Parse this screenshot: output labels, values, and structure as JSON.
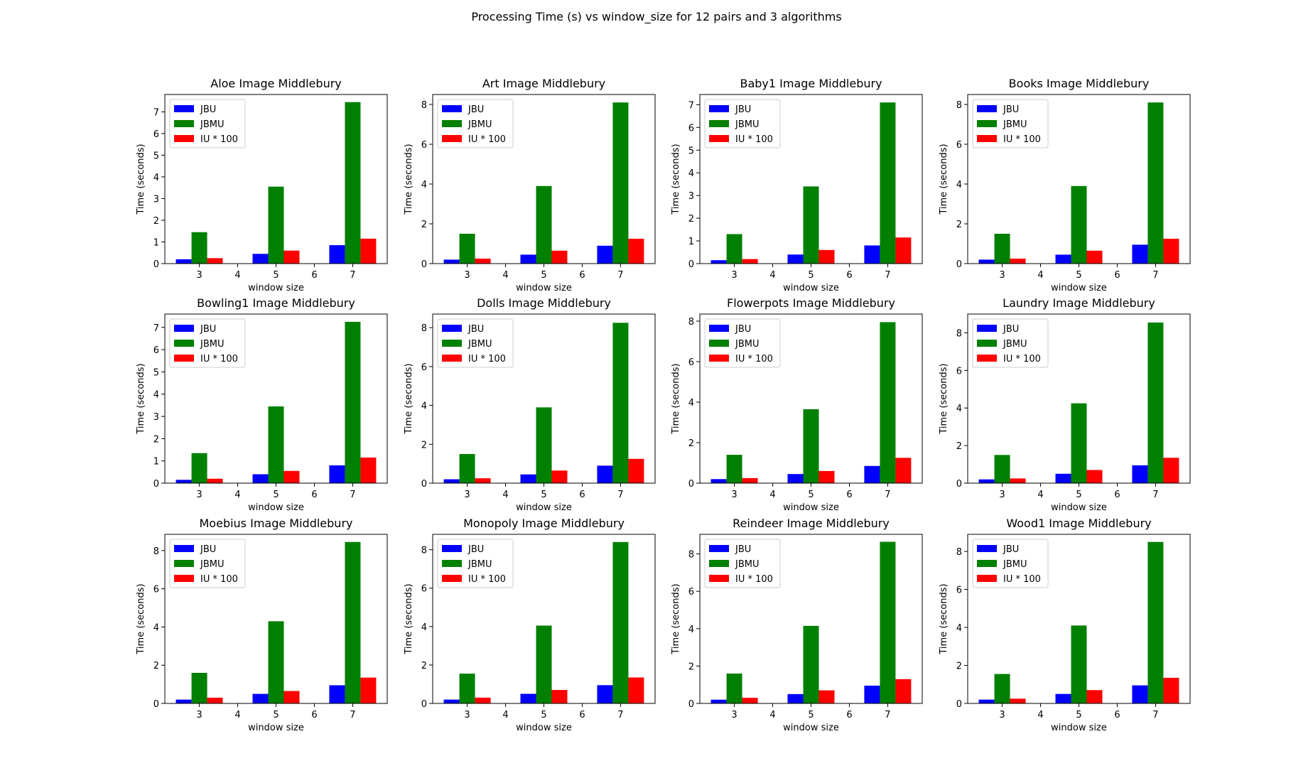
{
  "figure": {
    "suptitle": "Processing Time (s) vs window_size for 12 pairs and 3 algorithms",
    "xlabel": "window size",
    "ylabel": "Time (seconds)",
    "legend": [
      "JBU",
      "JBMU",
      "IU * 100"
    ],
    "colors": {
      "JBU": "#0000ff",
      "JBMU": "#008000",
      "IU * 100": "#ff0000"
    }
  },
  "chart_data": [
    {
      "type": "bar",
      "title": "Aloe Image Middlebury",
      "xlabel": "window size",
      "ylabel": "Time (seconds)",
      "x": [
        3,
        5,
        7
      ],
      "xlim": [
        2.1,
        7.9
      ],
      "xticks": [
        3,
        4,
        5,
        6,
        7
      ],
      "ylim": [
        0,
        7.8
      ],
      "yticks": [
        0,
        1,
        2,
        3,
        4,
        5,
        6,
        7
      ],
      "legend_loc": "upper left",
      "series": [
        {
          "name": "JBU",
          "values": [
            0.2,
            0.45,
            0.85
          ]
        },
        {
          "name": "JBMU",
          "values": [
            1.45,
            3.55,
            7.45
          ]
        },
        {
          "name": "IU * 100",
          "values": [
            0.25,
            0.6,
            1.15
          ]
        }
      ]
    },
    {
      "type": "bar",
      "title": "Art Image Middlebury",
      "xlabel": "window size",
      "ylabel": "Time (seconds)",
      "x": [
        3,
        5,
        7
      ],
      "xlim": [
        2.1,
        7.9
      ],
      "xticks": [
        3,
        4,
        5,
        6,
        7
      ],
      "ylim": [
        0,
        8.5
      ],
      "yticks": [
        0,
        2,
        4,
        6,
        8
      ],
      "legend_loc": "upper left",
      "series": [
        {
          "name": "JBU",
          "values": [
            0.2,
            0.45,
            0.9
          ]
        },
        {
          "name": "JBMU",
          "values": [
            1.5,
            3.9,
            8.1
          ]
        },
        {
          "name": "IU * 100",
          "values": [
            0.25,
            0.65,
            1.25
          ]
        }
      ]
    },
    {
      "type": "bar",
      "title": "Baby1 Image Middlebury",
      "xlabel": "window size",
      "ylabel": "Time (seconds)",
      "x": [
        3,
        5,
        7
      ],
      "xlim": [
        2.1,
        7.9
      ],
      "xticks": [
        3,
        4,
        5,
        6,
        7
      ],
      "ylim": [
        0,
        7.45
      ],
      "yticks": [
        0,
        1,
        2,
        3,
        4,
        5,
        6,
        7
      ],
      "legend_loc": "upper left",
      "series": [
        {
          "name": "JBU",
          "values": [
            0.15,
            0.4,
            0.8
          ]
        },
        {
          "name": "JBMU",
          "values": [
            1.3,
            3.4,
            7.1
          ]
        },
        {
          "name": "IU * 100",
          "values": [
            0.2,
            0.6,
            1.15
          ]
        }
      ]
    },
    {
      "type": "bar",
      "title": "Books Image Middlebury",
      "xlabel": "window size",
      "ylabel": "Time (seconds)",
      "x": [
        3,
        5,
        7
      ],
      "xlim": [
        2.1,
        7.9
      ],
      "xticks": [
        3,
        4,
        5,
        6,
        7
      ],
      "ylim": [
        0,
        8.5
      ],
      "yticks": [
        0,
        2,
        4,
        6,
        8
      ],
      "legend_loc": "upper left",
      "series": [
        {
          "name": "JBU",
          "values": [
            0.2,
            0.45,
            0.95
          ]
        },
        {
          "name": "JBMU",
          "values": [
            1.5,
            3.9,
            8.1
          ]
        },
        {
          "name": "IU * 100",
          "values": [
            0.25,
            0.65,
            1.25
          ]
        }
      ]
    },
    {
      "type": "bar",
      "title": "Bowling1 Image Middlebury",
      "xlabel": "window size",
      "ylabel": "Time (seconds)",
      "x": [
        3,
        5,
        7
      ],
      "xlim": [
        2.1,
        7.9
      ],
      "xticks": [
        3,
        4,
        5,
        6,
        7
      ],
      "ylim": [
        0,
        7.6
      ],
      "yticks": [
        0,
        1,
        2,
        3,
        4,
        5,
        6,
        7
      ],
      "legend_loc": "upper left",
      "series": [
        {
          "name": "JBU",
          "values": [
            0.15,
            0.4,
            0.8
          ]
        },
        {
          "name": "JBMU",
          "values": [
            1.35,
            3.45,
            7.25
          ]
        },
        {
          "name": "IU * 100",
          "values": [
            0.2,
            0.55,
            1.15
          ]
        }
      ]
    },
    {
      "type": "bar",
      "title": "Dolls Image Middlebury",
      "xlabel": "window size",
      "ylabel": "Time (seconds)",
      "x": [
        3,
        5,
        7
      ],
      "xlim": [
        2.1,
        7.9
      ],
      "xticks": [
        3,
        4,
        5,
        6,
        7
      ],
      "ylim": [
        0,
        8.7
      ],
      "yticks": [
        0,
        2,
        4,
        6,
        8
      ],
      "legend_loc": "upper left",
      "series": [
        {
          "name": "JBU",
          "values": [
            0.2,
            0.45,
            0.9
          ]
        },
        {
          "name": "JBMU",
          "values": [
            1.5,
            3.9,
            8.25
          ]
        },
        {
          "name": "IU * 100",
          "values": [
            0.25,
            0.65,
            1.25
          ]
        }
      ]
    },
    {
      "type": "bar",
      "title": "Flowerpots Image Middlebury",
      "xlabel": "window size",
      "ylabel": "Time (seconds)",
      "x": [
        3,
        5,
        7
      ],
      "xlim": [
        2.1,
        7.9
      ],
      "xticks": [
        3,
        4,
        5,
        6,
        7
      ],
      "ylim": [
        0,
        8.35
      ],
      "yticks": [
        0,
        2,
        4,
        6,
        8
      ],
      "legend_loc": "upper left",
      "series": [
        {
          "name": "JBU",
          "values": [
            0.2,
            0.45,
            0.85
          ]
        },
        {
          "name": "JBMU",
          "values": [
            1.4,
            3.65,
            7.95
          ]
        },
        {
          "name": "IU * 100",
          "values": [
            0.25,
            0.6,
            1.25
          ]
        }
      ]
    },
    {
      "type": "bar",
      "title": "Laundry Image Middlebury",
      "xlabel": "window size",
      "ylabel": "Time (seconds)",
      "x": [
        3,
        5,
        7
      ],
      "xlim": [
        2.1,
        7.9
      ],
      "xticks": [
        3,
        4,
        5,
        6,
        7
      ],
      "ylim": [
        0,
        9.0
      ],
      "yticks": [
        0,
        2,
        4,
        6,
        8
      ],
      "legend_loc": "upper left",
      "series": [
        {
          "name": "JBU",
          "values": [
            0.2,
            0.5,
            0.95
          ]
        },
        {
          "name": "JBMU",
          "values": [
            1.5,
            4.25,
            8.55
          ]
        },
        {
          "name": "IU * 100",
          "values": [
            0.25,
            0.7,
            1.35
          ]
        }
      ]
    },
    {
      "type": "bar",
      "title": "Moebius Image Middlebury",
      "xlabel": "window size",
      "ylabel": "Time (seconds)",
      "x": [
        3,
        5,
        7
      ],
      "xlim": [
        2.1,
        7.9
      ],
      "xticks": [
        3,
        4,
        5,
        6,
        7
      ],
      "ylim": [
        0,
        8.85
      ],
      "yticks": [
        0,
        2,
        4,
        6,
        8
      ],
      "legend_loc": "upper left",
      "series": [
        {
          "name": "JBU",
          "values": [
            0.2,
            0.5,
            0.95
          ]
        },
        {
          "name": "JBMU",
          "values": [
            1.6,
            4.3,
            8.45
          ]
        },
        {
          "name": "IU * 100",
          "values": [
            0.3,
            0.65,
            1.35
          ]
        }
      ]
    },
    {
      "type": "bar",
      "title": "Monopoly Image Middlebury",
      "xlabel": "window size",
      "ylabel": "Time (seconds)",
      "x": [
        3,
        5,
        7
      ],
      "xlim": [
        2.1,
        7.9
      ],
      "xticks": [
        3,
        4,
        5,
        6,
        7
      ],
      "ylim": [
        0,
        8.8
      ],
      "yticks": [
        0,
        2,
        4,
        6,
        8
      ],
      "legend_loc": "upper left",
      "series": [
        {
          "name": "JBU",
          "values": [
            0.2,
            0.5,
            0.95
          ]
        },
        {
          "name": "JBMU",
          "values": [
            1.55,
            4.05,
            8.4
          ]
        },
        {
          "name": "IU * 100",
          "values": [
            0.3,
            0.7,
            1.35
          ]
        }
      ]
    },
    {
      "type": "bar",
      "title": "Reindeer Image Middlebury",
      "xlabel": "window size",
      "ylabel": "Time (seconds)",
      "x": [
        3,
        5,
        7
      ],
      "xlim": [
        2.1,
        7.9
      ],
      "xticks": [
        3,
        4,
        5,
        6,
        7
      ],
      "ylim": [
        0,
        9.05
      ],
      "yticks": [
        0,
        2,
        4,
        6,
        8
      ],
      "legend_loc": "upper left",
      "series": [
        {
          "name": "JBU",
          "values": [
            0.2,
            0.5,
            0.95
          ]
        },
        {
          "name": "JBMU",
          "values": [
            1.6,
            4.15,
            8.65
          ]
        },
        {
          "name": "IU * 100",
          "values": [
            0.3,
            0.7,
            1.3
          ]
        }
      ]
    },
    {
      "type": "bar",
      "title": "Wood1 Image Middlebury",
      "xlabel": "window size",
      "ylabel": "Time (seconds)",
      "x": [
        3,
        5,
        7
      ],
      "xlim": [
        2.1,
        7.9
      ],
      "xticks": [
        3,
        4,
        5,
        6,
        7
      ],
      "ylim": [
        0,
        8.9
      ],
      "yticks": [
        0,
        2,
        4,
        6,
        8
      ],
      "legend_loc": "upper left",
      "series": [
        {
          "name": "JBU",
          "values": [
            0.2,
            0.5,
            0.95
          ]
        },
        {
          "name": "JBMU",
          "values": [
            1.55,
            4.1,
            8.5
          ]
        },
        {
          "name": "IU * 100",
          "values": [
            0.25,
            0.7,
            1.35
          ]
        }
      ]
    }
  ]
}
